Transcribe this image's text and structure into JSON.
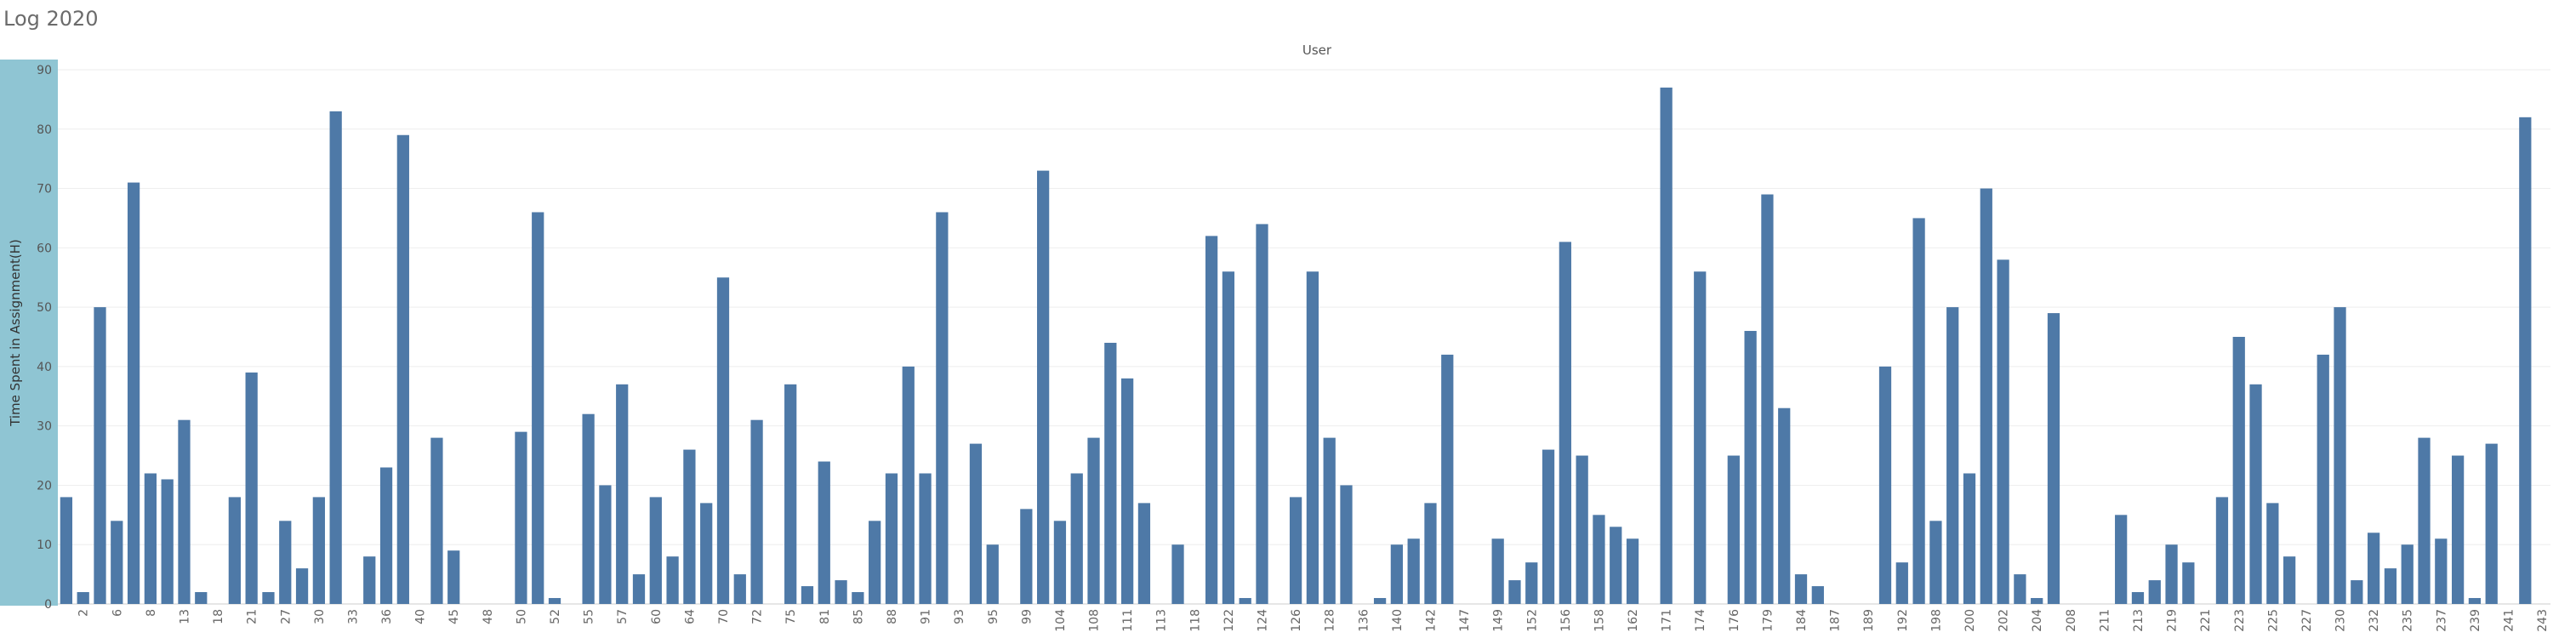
{
  "sheet": {
    "title": "Log 2020",
    "column_header": "User"
  },
  "colors": {
    "bar": "#4e79a7",
    "axis_band": "#8fc5d3",
    "grid": "#eeeeee"
  },
  "chart_data": {
    "type": "bar",
    "title": "Log 2020",
    "xlabel": "User",
    "ylabel": "Time Spent in Assignment(H)",
    "ylim": [
      0,
      90
    ],
    "yticks": [
      0,
      10,
      20,
      30,
      40,
      50,
      60,
      70,
      80,
      90
    ],
    "grid": true,
    "tick_labels": [
      "2",
      "6",
      "8",
      "13",
      "18",
      "21",
      "27",
      "30",
      "33",
      "36",
      "40",
      "45",
      "48",
      "50",
      "52",
      "55",
      "57",
      "60",
      "64",
      "70",
      "72",
      "75",
      "81",
      "85",
      "88",
      "91",
      "93",
      "95",
      "99",
      "104",
      "108",
      "111",
      "113",
      "118",
      "122",
      "124",
      "126",
      "128",
      "136",
      "140",
      "142",
      "147",
      "149",
      "152",
      "156",
      "158",
      "162",
      "171",
      "174",
      "176",
      "179",
      "184",
      "187",
      "189",
      "192",
      "198",
      "200",
      "202",
      "204",
      "208",
      "211",
      "213",
      "219",
      "221",
      "223",
      "225",
      "227",
      "230",
      "232",
      "235",
      "237",
      "239",
      "241",
      "243"
    ],
    "tick_slots": [
      1,
      3,
      5,
      7,
      9,
      11,
      13,
      15,
      17,
      19,
      21,
      23,
      25,
      27,
      29,
      31,
      33,
      35,
      37,
      39,
      41,
      43,
      45,
      47,
      49,
      51,
      53,
      55,
      57,
      59,
      61,
      63,
      65,
      67,
      69,
      71,
      73,
      75,
      77,
      79,
      81,
      83,
      85,
      87,
      89,
      91,
      93,
      95,
      97,
      99,
      101,
      103,
      105,
      107,
      109,
      111,
      113,
      115,
      117,
      119,
      121,
      123,
      125,
      127,
      129,
      131,
      133,
      135,
      137,
      139,
      141,
      143,
      145,
      147
    ],
    "slot_count": 148,
    "values": [
      18,
      2,
      50,
      14,
      71,
      22,
      21,
      31,
      2,
      0,
      18,
      39,
      2,
      14,
      6,
      18,
      83,
      0,
      8,
      23,
      79,
      0,
      28,
      9,
      0,
      0,
      0,
      29,
      66,
      1,
      0,
      32,
      20,
      37,
      5,
      18,
      8,
      26,
      17,
      55,
      5,
      31,
      0,
      37,
      3,
      24,
      4,
      2,
      14,
      22,
      40,
      22,
      66,
      0,
      27,
      10,
      0,
      16,
      73,
      14,
      22,
      28,
      44,
      38,
      17,
      0,
      10,
      0,
      62,
      56,
      1,
      64,
      0,
      18,
      56,
      28,
      20,
      0,
      1,
      10,
      11,
      17,
      42,
      0,
      0,
      11,
      4,
      7,
      26,
      61,
      25,
      15,
      13,
      11,
      0,
      87,
      0,
      56,
      0,
      25,
      46,
      69,
      33,
      5,
      3,
      0,
      0,
      0,
      40,
      7,
      65,
      14,
      50,
      22,
      70,
      58,
      5,
      1,
      49,
      0,
      0,
      0,
      15,
      2,
      4,
      10,
      7,
      0,
      18,
      45,
      37,
      17,
      8,
      0,
      42,
      50,
      4,
      12,
      6,
      10,
      28,
      11,
      25,
      1,
      27,
      0,
      82,
      0
    ]
  }
}
